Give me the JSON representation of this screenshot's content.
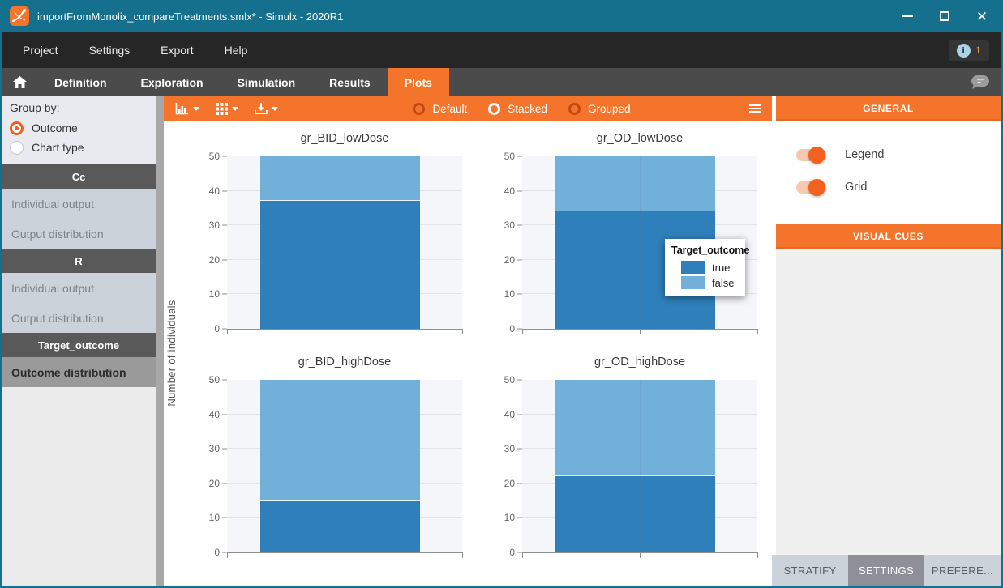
{
  "window": {
    "title": "importFromMonolix_compareTreatments.smlx* - Simulx - 2020R1"
  },
  "menu": {
    "items": [
      "Project",
      "Settings",
      "Export",
      "Help"
    ],
    "notification_count": "1"
  },
  "nav_tabs": {
    "items": [
      {
        "label": "Definition",
        "active": false
      },
      {
        "label": "Exploration",
        "active": false
      },
      {
        "label": "Simulation",
        "active": false
      },
      {
        "label": "Results",
        "active": false
      },
      {
        "label": "Plots",
        "active": true
      }
    ]
  },
  "sidebar": {
    "group_by": {
      "label": "Group by:",
      "options": [
        {
          "label": "Outcome",
          "selected": true
        },
        {
          "label": "Chart type",
          "selected": false
        }
      ]
    },
    "sections": [
      {
        "header": "Cc",
        "items": [
          {
            "label": "Individual output",
            "selected": false
          },
          {
            "label": "Output distribution",
            "selected": false
          }
        ]
      },
      {
        "header": "R",
        "items": [
          {
            "label": "Individual output",
            "selected": false
          },
          {
            "label": "Output distribution",
            "selected": false
          }
        ]
      },
      {
        "header": "Target_outcome",
        "items": [
          {
            "label": "Outcome distribution",
            "selected": true
          }
        ]
      }
    ]
  },
  "toolbar": {
    "modes": [
      {
        "label": "Default",
        "selected": false
      },
      {
        "label": "Stacked",
        "selected": true
      },
      {
        "label": "Grouped",
        "selected": false
      }
    ]
  },
  "right_panel": {
    "section_general": "GENERAL",
    "section_visual_cues": "VISUAL CUES",
    "toggles": [
      {
        "label": "Legend",
        "on": true
      },
      {
        "label": "Grid",
        "on": true
      }
    ],
    "bottom_tabs": [
      {
        "label": "STRATIFY",
        "active": false
      },
      {
        "label": "SETTINGS",
        "active": true
      },
      {
        "label": "PREFERE...",
        "active": false
      }
    ]
  },
  "colors": {
    "accent_orange": "#f4742b",
    "titlebar_teal": "#15708e",
    "bar_true": "#2f80ba",
    "bar_false": "#71b1d9"
  },
  "chart_data": {
    "type": "bar",
    "stacked": true,
    "ylabel": "Number of individuals",
    "ylim": [
      0,
      50
    ],
    "yticks": [
      0,
      10,
      20,
      30,
      40,
      50
    ],
    "grid": true,
    "legend": {
      "title": "Target_outcome",
      "entries": [
        {
          "label": "true",
          "color": "#2f80ba"
        },
        {
          "label": "false",
          "color": "#71b1d9"
        }
      ]
    },
    "charts": [
      {
        "title": "gr_BID_lowDose",
        "series": {
          "true": 37,
          "false": 13
        }
      },
      {
        "title": "gr_OD_lowDose",
        "series": {
          "true": 34,
          "false": 16
        }
      },
      {
        "title": "gr_BID_highDose",
        "series": {
          "true": 15,
          "false": 35
        }
      },
      {
        "title": "gr_OD_highDose",
        "series": {
          "true": 22,
          "false": 28
        }
      }
    ]
  }
}
